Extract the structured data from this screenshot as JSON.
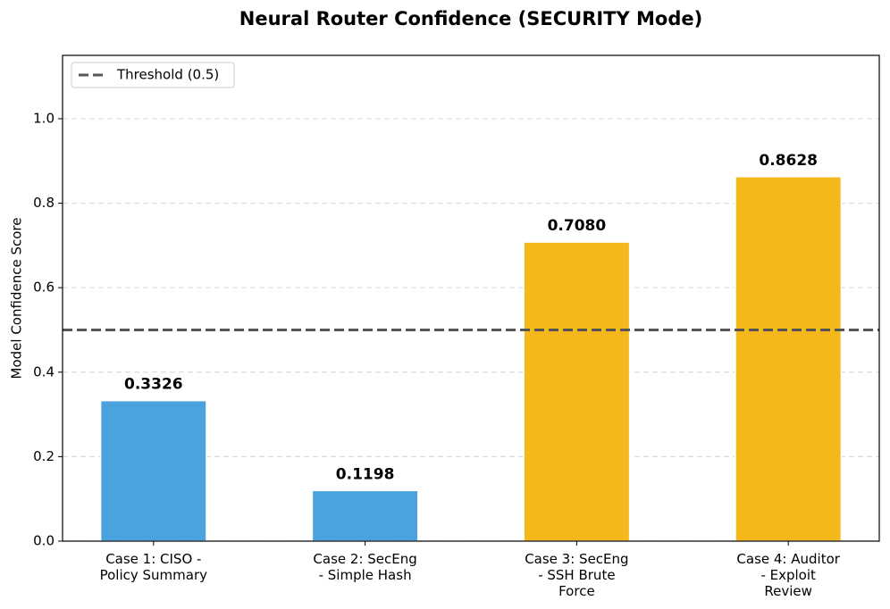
{
  "chart_data": {
    "type": "bar",
    "title": "Neural Router Confidence (SECURITY Mode)",
    "y_label": "Model Confidence Score",
    "categories": [
      [
        "Case 1: CISO -",
        "Policy Summary"
      ],
      [
        "Case 2: SecEng",
        "- Simple Hash"
      ],
      [
        "Case 3: SecEng",
        "- SSH Brute",
        "Force"
      ],
      [
        "Case 4: Auditor",
        "- Exploit",
        "Review"
      ]
    ],
    "values": [
      0.3326,
      0.1198,
      0.708,
      0.8628
    ],
    "value_labels": [
      "0.3326",
      "0.1198",
      "0.7080",
      "0.8628"
    ],
    "colors": [
      "#4aa3df",
      "#4aa3df",
      "#f5b81b",
      "#f5b81b"
    ],
    "ylim": [
      0,
      1.15
    ],
    "yticks": [
      {
        "value": 0,
        "label": "0.0"
      },
      0.2,
      0.4,
      0.6,
      0.8,
      {
        "value": 1,
        "label": "1.0"
      }
    ],
    "grid": true,
    "threshold": {
      "value": 0.5,
      "label": "Threshold (0.5)",
      "color": "#555555"
    },
    "legend": "upper left"
  }
}
